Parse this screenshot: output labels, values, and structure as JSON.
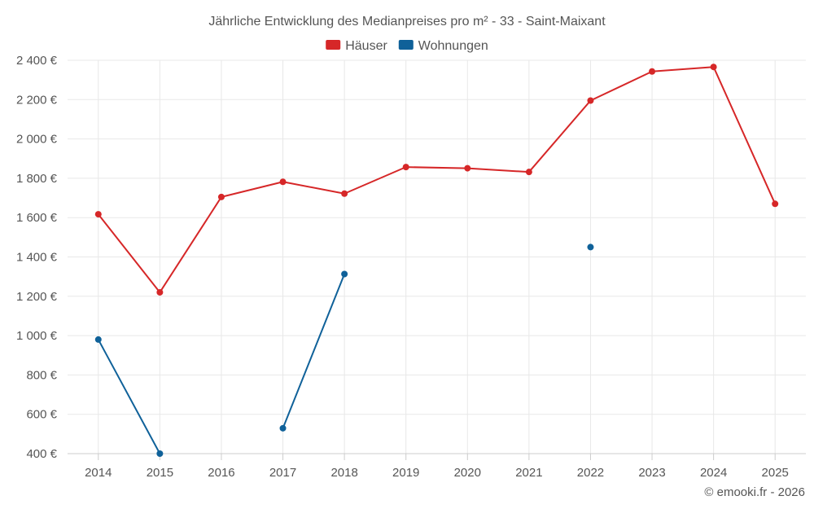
{
  "chart_data": {
    "type": "line",
    "title": "Jährliche Entwicklung des Medianpreises pro m² - 33 - Saint-Maixant",
    "credit": "© emooki.fr - 2026",
    "categories": [
      "2014",
      "2015",
      "2016",
      "2017",
      "2018",
      "2019",
      "2020",
      "2021",
      "2022",
      "2023",
      "2024",
      "2025"
    ],
    "ylim": [
      400,
      2400
    ],
    "yticks": [
      400,
      600,
      800,
      1000,
      1200,
      1400,
      1600,
      1800,
      2000,
      2200,
      2400
    ],
    "ytick_labels": [
      "400 €",
      "600 €",
      "800 €",
      "1 000 €",
      "1 200 €",
      "1 400 €",
      "1 600 €",
      "1 800 €",
      "2 000 €",
      "2 200 €",
      "2 400 €"
    ],
    "grid": true,
    "legend_position": "top-center",
    "series": [
      {
        "name": "Häuser",
        "color": "#d62728",
        "values": [
          1617,
          1220,
          1705,
          1782,
          1722,
          1857,
          1851,
          1832,
          2195,
          2343,
          2366,
          1670
        ]
      },
      {
        "name": "Wohnungen",
        "color": "#0f6199",
        "values": [
          980,
          400,
          null,
          529,
          1313,
          null,
          null,
          null,
          1450,
          null,
          null,
          null
        ]
      }
    ]
  }
}
